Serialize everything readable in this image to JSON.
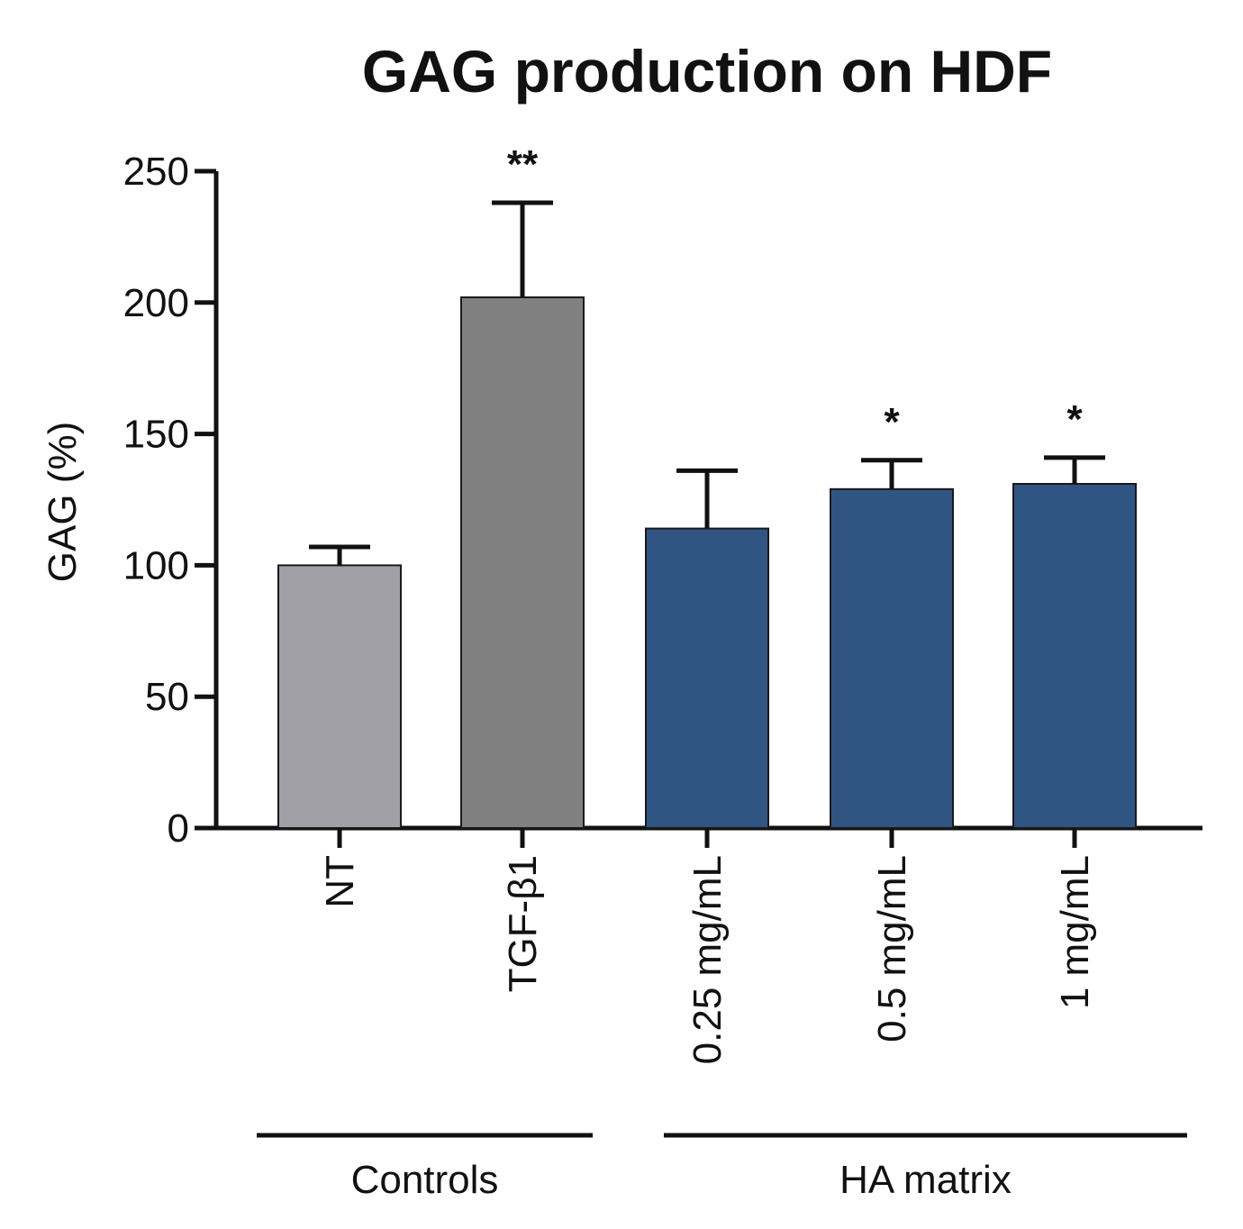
{
  "chart_data": {
    "type": "bar",
    "title": "GAG production on HDF",
    "xlabel": "",
    "ylabel": "GAG (%)",
    "ylim": [
      0,
      250
    ],
    "yticks": [
      "0",
      "50",
      "100",
      "150",
      "200",
      "250"
    ],
    "ytick_values": [
      0,
      50,
      100,
      150,
      200,
      250
    ],
    "categories": [
      "NT",
      "TGF-β1",
      "0.25 mg/mL",
      "0.5 mg/mL",
      "1 mg/mL"
    ],
    "values": [
      100,
      202,
      114,
      129,
      131
    ],
    "errors": [
      7,
      36,
      22,
      11,
      10
    ],
    "significance": [
      "",
      "**",
      "",
      "*",
      "*"
    ],
    "bar_colors": [
      "#a0a0a6",
      "#808080",
      "#305583",
      "#305583",
      "#305583"
    ],
    "groups": [
      {
        "label": "Controls",
        "categories": [
          "NT",
          "TGF-β1"
        ]
      },
      {
        "label": "HA matrix",
        "categories": [
          "0.25 mg/mL",
          "0.5 mg/mL",
          "1 mg/mL"
        ]
      }
    ],
    "grid": false,
    "legend": "none"
  }
}
